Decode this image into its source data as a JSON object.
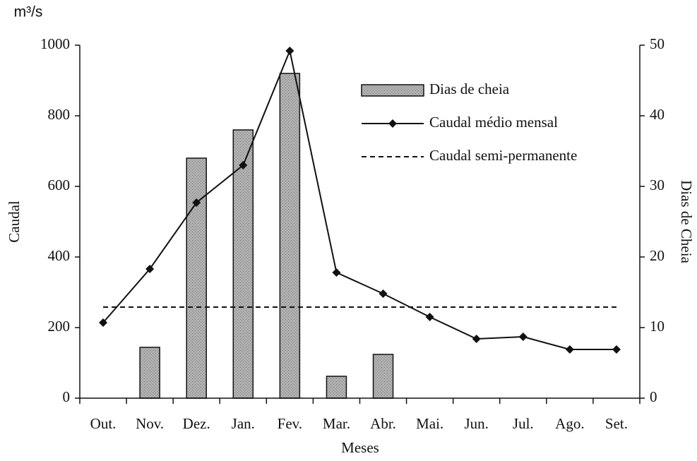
{
  "chart_data": {
    "type": "bar_line",
    "unit": "m³/s",
    "ylabel": "Caudal",
    "y2label": "Dias de Cheia",
    "xlabel": "Meses",
    "categories": [
      "Out.",
      "Nov.",
      "Dez.",
      "Jan.",
      "Fev.",
      "Mar.",
      "Abr.",
      "Mai.",
      "Jun.",
      "Jul.",
      "Ago.",
      "Set."
    ],
    "ylim": [
      0,
      1000
    ],
    "yticks": [
      0,
      200,
      400,
      600,
      800,
      1000
    ],
    "y2lim": [
      0,
      50
    ],
    "y2ticks": [
      0,
      10,
      20,
      30,
      40,
      50
    ],
    "series": [
      {
        "name": "Dias de cheia",
        "type": "bar",
        "axis": "y2",
        "color": "#a8a8a8",
        "values": [
          0,
          7.2,
          34,
          38,
          46,
          3.1,
          6.2,
          0,
          0,
          0,
          0,
          0
        ]
      },
      {
        "name": "Caudal médio mensal",
        "type": "line",
        "color": "#111111",
        "marker": "diamond",
        "values": [
          214,
          366,
          554,
          660,
          984,
          356,
          296,
          230,
          168,
          174,
          138,
          138
        ]
      },
      {
        "name": "Caudal semi-permanente",
        "type": "line",
        "color": "#111111",
        "dashed": true,
        "values": [
          258,
          258,
          258,
          258,
          258,
          258,
          258,
          258,
          258,
          258,
          258,
          258
        ]
      }
    ]
  }
}
